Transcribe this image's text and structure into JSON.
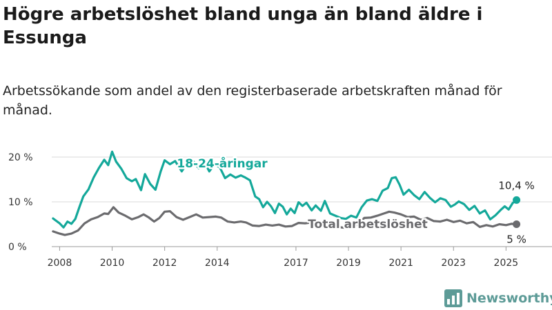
{
  "title": "Högre arbetslöshet bland unga än bland äldre i Essunga",
  "subtitle": "Arbetssökande som andel av den registerbaserade arbetskraften månad för månad.",
  "brand": {
    "name": "Newsworthy"
  },
  "colors": {
    "youth": "#14a89a",
    "total": "#6b6b6e",
    "grid": "#d9d9d9",
    "brand": "#5d9b97"
  },
  "chart_data": {
    "type": "line",
    "x_ticks": [
      "2008",
      "2010",
      "2012",
      "2014",
      "2017",
      "2019",
      "2021",
      "2023",
      "2025"
    ],
    "y_ticks": [
      "0 %",
      "10 %",
      "20 %"
    ],
    "ylim": [
      0,
      22
    ],
    "xlim": [
      2007.7,
      2025.7
    ],
    "series": [
      {
        "name": "18-24-åringar",
        "end_label": "10,4 %",
        "points": [
          [
            2007.75,
            6.3
          ],
          [
            2008.0,
            5.2
          ],
          [
            2008.15,
            4.3
          ],
          [
            2008.3,
            5.6
          ],
          [
            2008.45,
            5.1
          ],
          [
            2008.6,
            6.2
          ],
          [
            2008.75,
            8.8
          ],
          [
            2008.9,
            11.2
          ],
          [
            2009.1,
            12.8
          ],
          [
            2009.3,
            15.5
          ],
          [
            2009.5,
            17.6
          ],
          [
            2009.7,
            19.4
          ],
          [
            2009.85,
            18.2
          ],
          [
            2010.0,
            21.2
          ],
          [
            2010.15,
            19.0
          ],
          [
            2010.35,
            17.4
          ],
          [
            2010.55,
            15.3
          ],
          [
            2010.75,
            14.6
          ],
          [
            2010.9,
            15.1
          ],
          [
            2011.1,
            12.6
          ],
          [
            2011.25,
            16.2
          ],
          [
            2011.45,
            14.0
          ],
          [
            2011.65,
            12.7
          ],
          [
            2011.85,
            16.8
          ],
          [
            2012.0,
            19.3
          ],
          [
            2012.2,
            18.4
          ],
          [
            2012.4,
            19.1
          ],
          [
            2012.65,
            16.8
          ],
          [
            2012.85,
            18.6
          ],
          [
            2013.1,
            19.0
          ],
          [
            2013.3,
            17.5
          ],
          [
            2013.5,
            19.0
          ],
          [
            2013.7,
            16.8
          ],
          [
            2013.9,
            18.4
          ],
          [
            2014.1,
            17.7
          ],
          [
            2014.3,
            15.3
          ],
          [
            2014.5,
            16.1
          ],
          [
            2014.7,
            15.4
          ],
          [
            2014.9,
            15.9
          ],
          [
            2015.05,
            15.5
          ],
          [
            2015.25,
            14.8
          ],
          [
            2015.45,
            11.2
          ],
          [
            2015.6,
            10.6
          ],
          [
            2015.75,
            8.8
          ],
          [
            2015.9,
            10.0
          ],
          [
            2016.05,
            9.0
          ],
          [
            2016.2,
            7.5
          ],
          [
            2016.35,
            9.6
          ],
          [
            2016.5,
            8.9
          ],
          [
            2016.65,
            7.2
          ],
          [
            2016.8,
            8.5
          ],
          [
            2016.95,
            7.5
          ],
          [
            2017.1,
            9.9
          ],
          [
            2017.25,
            9.1
          ],
          [
            2017.4,
            9.8
          ],
          [
            2017.6,
            8.1
          ],
          [
            2017.75,
            9.2
          ],
          [
            2017.95,
            8.0
          ],
          [
            2018.1,
            10.2
          ],
          [
            2018.3,
            7.4
          ],
          [
            2018.5,
            6.9
          ],
          [
            2018.7,
            6.4
          ],
          [
            2018.9,
            6.2
          ],
          [
            2019.1,
            6.9
          ],
          [
            2019.3,
            6.5
          ],
          [
            2019.5,
            8.8
          ],
          [
            2019.7,
            10.3
          ],
          [
            2019.9,
            10.6
          ],
          [
            2020.1,
            10.2
          ],
          [
            2020.3,
            12.5
          ],
          [
            2020.5,
            13.1
          ],
          [
            2020.65,
            15.3
          ],
          [
            2020.8,
            15.5
          ],
          [
            2020.95,
            13.8
          ],
          [
            2021.1,
            11.6
          ],
          [
            2021.3,
            12.7
          ],
          [
            2021.5,
            11.5
          ],
          [
            2021.7,
            10.6
          ],
          [
            2021.9,
            12.2
          ],
          [
            2022.1,
            10.9
          ],
          [
            2022.3,
            9.9
          ],
          [
            2022.5,
            10.8
          ],
          [
            2022.7,
            10.4
          ],
          [
            2022.9,
            8.9
          ],
          [
            2023.05,
            9.4
          ],
          [
            2023.2,
            10.1
          ],
          [
            2023.4,
            9.5
          ],
          [
            2023.6,
            8.2
          ],
          [
            2023.8,
            9.1
          ],
          [
            2024.0,
            7.4
          ],
          [
            2024.2,
            8.1
          ],
          [
            2024.4,
            6.1
          ],
          [
            2024.6,
            7.0
          ],
          [
            2024.8,
            8.2
          ],
          [
            2024.95,
            9.0
          ],
          [
            2025.1,
            8.3
          ],
          [
            2025.25,
            9.7
          ],
          [
            2025.4,
            10.4
          ]
        ]
      },
      {
        "name": "Total arbetslöshet",
        "end_label": "5 %",
        "points": [
          [
            2007.75,
            3.4
          ],
          [
            2008.0,
            2.9
          ],
          [
            2008.2,
            2.6
          ],
          [
            2008.45,
            2.9
          ],
          [
            2008.7,
            3.6
          ],
          [
            2008.95,
            5.2
          ],
          [
            2009.2,
            6.1
          ],
          [
            2009.45,
            6.6
          ],
          [
            2009.7,
            7.4
          ],
          [
            2009.85,
            7.3
          ],
          [
            2010.05,
            8.8
          ],
          [
            2010.25,
            7.6
          ],
          [
            2010.5,
            6.9
          ],
          [
            2010.75,
            6.1
          ],
          [
            2011.0,
            6.6
          ],
          [
            2011.2,
            7.2
          ],
          [
            2011.4,
            6.5
          ],
          [
            2011.6,
            5.6
          ],
          [
            2011.8,
            6.4
          ],
          [
            2012.0,
            7.8
          ],
          [
            2012.2,
            7.9
          ],
          [
            2012.45,
            6.6
          ],
          [
            2012.7,
            6.0
          ],
          [
            2012.95,
            6.6
          ],
          [
            2013.2,
            7.2
          ],
          [
            2013.45,
            6.5
          ],
          [
            2013.7,
            6.6
          ],
          [
            2013.95,
            6.7
          ],
          [
            2014.15,
            6.5
          ],
          [
            2014.4,
            5.6
          ],
          [
            2014.65,
            5.4
          ],
          [
            2014.9,
            5.6
          ],
          [
            2015.1,
            5.4
          ],
          [
            2015.35,
            4.7
          ],
          [
            2015.6,
            4.6
          ],
          [
            2015.85,
            4.9
          ],
          [
            2016.1,
            4.7
          ],
          [
            2016.35,
            4.9
          ],
          [
            2016.6,
            4.5
          ],
          [
            2016.85,
            4.6
          ],
          [
            2017.1,
            5.3
          ],
          [
            2017.35,
            5.2
          ],
          [
            2017.6,
            5.4
          ],
          [
            2017.85,
            5.0
          ],
          [
            2018.1,
            5.9
          ],
          [
            2018.35,
            4.9
          ],
          [
            2018.6,
            4.4
          ],
          [
            2018.85,
            4.2
          ],
          [
            2019.1,
            4.4
          ],
          [
            2019.35,
            4.9
          ],
          [
            2019.6,
            6.4
          ],
          [
            2019.85,
            6.5
          ],
          [
            2020.1,
            6.9
          ],
          [
            2020.35,
            7.4
          ],
          [
            2020.55,
            7.8
          ],
          [
            2020.75,
            7.6
          ],
          [
            2021.0,
            7.2
          ],
          [
            2021.25,
            6.6
          ],
          [
            2021.5,
            6.7
          ],
          [
            2021.75,
            6.0
          ],
          [
            2022.0,
            6.4
          ],
          [
            2022.25,
            5.7
          ],
          [
            2022.5,
            5.6
          ],
          [
            2022.75,
            6.0
          ],
          [
            2023.0,
            5.5
          ],
          [
            2023.25,
            5.8
          ],
          [
            2023.5,
            5.2
          ],
          [
            2023.75,
            5.5
          ],
          [
            2024.0,
            4.4
          ],
          [
            2024.25,
            4.8
          ],
          [
            2024.5,
            4.5
          ],
          [
            2024.75,
            5.0
          ],
          [
            2025.0,
            4.8
          ],
          [
            2025.2,
            5.1
          ],
          [
            2025.4,
            5.0
          ]
        ]
      }
    ]
  }
}
